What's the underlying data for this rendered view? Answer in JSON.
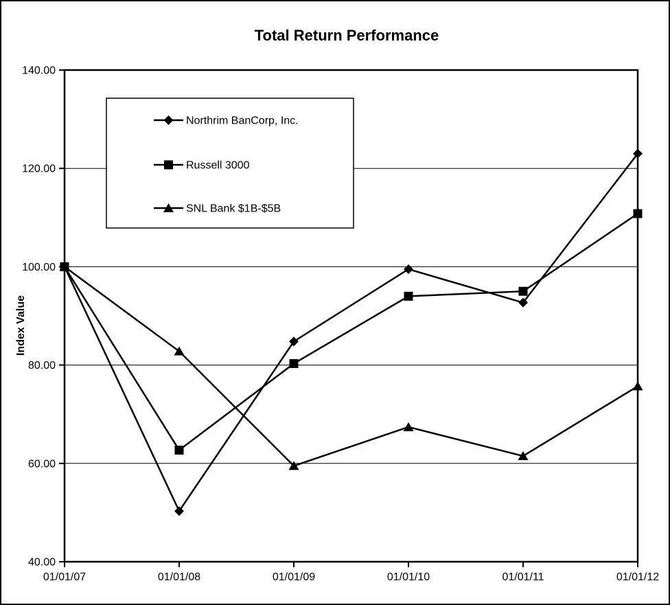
{
  "window": {
    "background_color": "#ffffff",
    "frame_border_color": "#000000"
  },
  "chart_data": {
    "type": "line",
    "title": "Total Return Performance",
    "xlabel": "",
    "ylabel": "Index Value",
    "categories": [
      "01/01/07",
      "01/01/08",
      "01/01/09",
      "01/01/10",
      "01/01/11",
      "01/01/12"
    ],
    "series": [
      {
        "name": "Northrim BanCorp, Inc.",
        "marker": "diamond",
        "color": "#000000",
        "values": [
          100.0,
          50.3,
          84.8,
          99.5,
          92.7,
          123.0
        ]
      },
      {
        "name": "Russell 3000",
        "marker": "square",
        "color": "#000000",
        "values": [
          100.0,
          62.7,
          80.3,
          94.0,
          95.0,
          110.8
        ]
      },
      {
        "name": "SNL Bank $1B-$5B",
        "marker": "triangle",
        "color": "#000000",
        "values": [
          100.0,
          82.8,
          59.5,
          67.4,
          61.5,
          75.7
        ]
      }
    ],
    "ylim": [
      40,
      140
    ],
    "ytick_step": 20,
    "yticks": [
      {
        "value": 140,
        "label": "140.00"
      },
      {
        "value": 120,
        "label": "120.00"
      },
      {
        "value": 100,
        "label": "100.00"
      },
      {
        "value": 80,
        "label": "80.00"
      },
      {
        "value": 60,
        "label": "60.00"
      },
      {
        "value": 40,
        "label": "40.00"
      }
    ],
    "grid": "horizontal-on",
    "legend_position": "top-left-inside",
    "legend_border_color": "#000000",
    "legend_background": "#ffffff",
    "line_color": "#000000"
  }
}
